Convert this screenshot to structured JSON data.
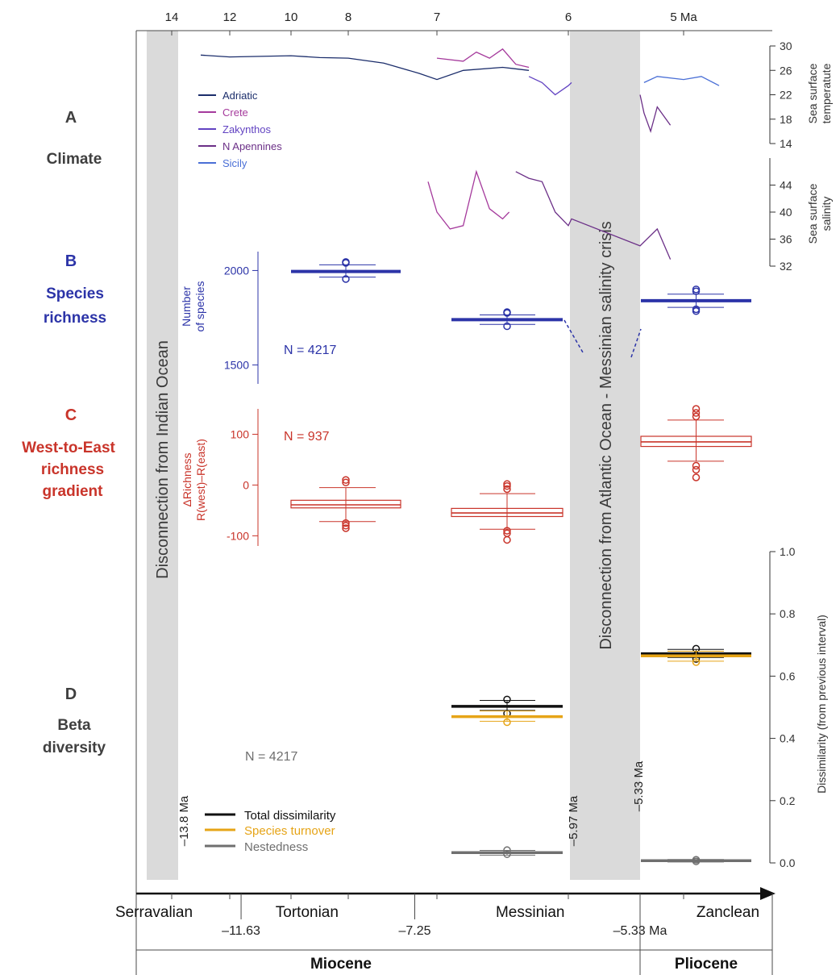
{
  "panels": {
    "a_letter": "A",
    "a_title": "Climate",
    "b_letter": "B",
    "b_title1": "Species",
    "b_title2": "richness",
    "c_letter": "C",
    "c_title1": "West-to-East",
    "c_title2": "richness",
    "c_title3": "gradient",
    "d_letter": "D",
    "d_title1": "Beta",
    "d_title2": "diversity"
  },
  "colors": {
    "dark_grey": "#3f3f3f",
    "navy": "#1b2d6b",
    "richness_blue": "#2c34a8",
    "gradient_red": "#c9342a",
    "crete": "#a53a9c",
    "zakynthos": "#6243c2",
    "n_apennines": "#6b2f87",
    "sicily": "#4a6fd6",
    "total": "#111111",
    "turnover": "#e6a417",
    "nestedness": "#6f6f6f",
    "band": "#dadada"
  },
  "bands": {
    "indian": "Disconnection from Indian Ocean",
    "atlantic": "Disconnection from Atlantic Ocean - Messinian salinity crisis",
    "m13_8": "–13.8 Ma",
    "m5_97": "–5.97 Ma",
    "m5_33": "–5.33 Ma"
  },
  "chart_data": [
    {
      "type": "line",
      "panel": "A",
      "title": "Climate",
      "xlabel": "Ma",
      "ylabel": "Sea surface temperatute",
      "ylim": [
        14,
        30
      ],
      "ticks": [
        14,
        18,
        22,
        26,
        30
      ],
      "series": [
        {
          "name": "Adriatic",
          "points": [
            [
              13,
              28.5
            ],
            [
              12,
              28.2
            ],
            [
              11,
              28.3
            ],
            [
              10,
              28.4
            ],
            [
              9,
              28.1
            ],
            [
              8,
              28.0
            ],
            [
              7.6,
              27.2
            ],
            [
              7.2,
              25.5
            ],
            [
              7.0,
              24.5
            ],
            [
              6.8,
              26.0
            ],
            [
              6.5,
              26.5
            ],
            [
              6.3,
              26.0
            ]
          ]
        },
        {
          "name": "Crete",
          "points": [
            [
              7.0,
              28.0
            ],
            [
              6.8,
              27.5
            ],
            [
              6.7,
              29.0
            ],
            [
              6.6,
              28.0
            ],
            [
              6.5,
              29.5
            ],
            [
              6.4,
              27.0
            ],
            [
              6.3,
              26.5
            ]
          ]
        },
        {
          "name": "Zakynthos",
          "points": [
            [
              6.3,
              25.0
            ],
            [
              6.2,
              24.0
            ],
            [
              6.1,
              22.0
            ],
            [
              6.0,
              23.5
            ],
            [
              5.97,
              24.0
            ]
          ]
        },
        {
          "name": "N Apennines",
          "points": [
            [
              5.33,
              22.0
            ],
            [
              5.3,
              19.0
            ],
            [
              5.25,
              16.0
            ],
            [
              5.2,
              20.0
            ],
            [
              5.1,
              17.0
            ]
          ]
        },
        {
          "name": "Sicily",
          "points": [
            [
              5.3,
              24.0
            ],
            [
              5.2,
              25.0
            ],
            [
              5.0,
              24.5
            ],
            [
              4.9,
              25.0
            ],
            [
              4.8,
              23.5
            ]
          ]
        }
      ]
    },
    {
      "type": "line",
      "panel": "A",
      "ylabel": "Sea surface salinity",
      "ylim": [
        32,
        48
      ],
      "ticks": [
        32,
        36,
        40,
        44
      ],
      "series": [
        {
          "name": "Crete",
          "points": [
            [
              7.1,
              44.5
            ],
            [
              7.0,
              40.0
            ],
            [
              6.9,
              37.5
            ],
            [
              6.8,
              38.0
            ],
            [
              6.7,
              46.0
            ],
            [
              6.6,
              40.5
            ],
            [
              6.5,
              39.0
            ],
            [
              6.45,
              40.0
            ]
          ]
        },
        {
          "name": "N Apennines",
          "points": [
            [
              6.4,
              46.0
            ],
            [
              6.3,
              45.0
            ],
            [
              6.2,
              44.5
            ],
            [
              6.1,
              40.0
            ],
            [
              6.0,
              38.0
            ],
            [
              5.97,
              39.0
            ],
            [
              5.33,
              35.0
            ],
            [
              5.2,
              37.5
            ],
            [
              5.1,
              33.0
            ]
          ]
        }
      ]
    },
    {
      "type": "boxplot",
      "panel": "B",
      "title": "Species richness",
      "ylabel": "Number of species",
      "ylim": [
        1400,
        2100
      ],
      "ticks": [
        1500,
        2000
      ],
      "annotation": "N = 4217",
      "boxes": [
        {
          "stage": "Tortonian",
          "median": 1995,
          "whisker_low": 1965,
          "whisker_high": 2030,
          "outliers": [
            1955,
            2040,
            2045
          ]
        },
        {
          "stage": "Messinian",
          "median": 1740,
          "whisker_low": 1715,
          "whisker_high": 1765,
          "outliers": [
            1705,
            1775,
            1780
          ]
        },
        {
          "stage": "Zanclean",
          "median": 1840,
          "whisker_low": 1805,
          "whisker_high": 1875,
          "outliers": [
            1785,
            1795,
            1890,
            1900
          ]
        }
      ]
    },
    {
      "type": "boxplot",
      "panel": "C",
      "title": "West-to-East richness gradient",
      "ylabel": "ΔRichness R(west)–R(east)",
      "ylim": [
        -120,
        150
      ],
      "ticks": [
        -100,
        0,
        100
      ],
      "annotation": "N = 937",
      "boxes": [
        {
          "stage": "Tortonian",
          "q1": -45,
          "median": -39,
          "q3": -30,
          "whisker_low": -72,
          "whisker_high": -5,
          "outliers": [
            -85,
            -80,
            -75,
            5,
            10
          ]
        },
        {
          "stage": "Messinian",
          "q1": -62,
          "median": -55,
          "q3": -46,
          "whisker_low": -87,
          "whisker_high": -17,
          "outliers": [
            -108,
            -95,
            -90,
            -8,
            -2,
            2
          ]
        },
        {
          "stage": "Zanclean",
          "q1": 76,
          "median": 85,
          "q3": 96,
          "whisker_low": 47,
          "whisker_high": 128,
          "outliers": [
            15,
            30,
            38,
            135,
            142,
            150
          ]
        }
      ]
    },
    {
      "type": "boxplot",
      "panel": "D",
      "title": "Beta diversity",
      "ylabel": "Dissimilarity (from previous interval)",
      "ylim": [
        0,
        1
      ],
      "ticks": [
        0.0,
        0.2,
        0.4,
        0.6,
        0.8,
        1.0
      ],
      "annotation": "N = 4217",
      "series": [
        {
          "name": "Total dissimilarity",
          "boxes": [
            {
              "stage": "Messinian",
              "median": 0.503,
              "whisker_low": 0.49,
              "whisker_high": 0.522,
              "outliers": [
                0.48,
                0.525
              ]
            },
            {
              "stage": "Zanclean",
              "median": 0.672,
              "whisker_low": 0.66,
              "whisker_high": 0.686,
              "outliers": [
                0.655,
                0.688
              ]
            }
          ]
        },
        {
          "name": "Species turnover",
          "boxes": [
            {
              "stage": "Messinian",
              "median": 0.47,
              "whisker_low": 0.455,
              "whisker_high": 0.488,
              "outliers": [
                0.452
              ]
            },
            {
              "stage": "Zanclean",
              "median": 0.665,
              "whisker_low": 0.648,
              "whisker_high": 0.68,
              "outliers": [
                0.645
              ]
            }
          ]
        },
        {
          "name": "Nestedness",
          "boxes": [
            {
              "stage": "Messinian",
              "median": 0.033,
              "whisker_low": 0.025,
              "whisker_high": 0.04,
              "outliers": [
                0.028,
                0.041
              ]
            },
            {
              "stage": "Zanclean",
              "median": 0.007,
              "whisker_low": 0.003,
              "whisker_high": 0.011,
              "outliers": [
                0.005,
                0.01
              ]
            }
          ]
        }
      ]
    }
  ],
  "time_axis": {
    "top_ticks": [
      {
        "ma": 14,
        "label": "14"
      },
      {
        "ma": 12,
        "label": "12"
      },
      {
        "ma": 10,
        "label": "10"
      },
      {
        "ma": 8,
        "label": "8"
      },
      {
        "ma": 7,
        "label": "7"
      },
      {
        "ma": 6,
        "label": "6"
      },
      {
        "ma": 5,
        "label": "5 Ma"
      }
    ],
    "stages": [
      {
        "name": "Serravalian",
        "mid": 14.25
      },
      {
        "name": "Tortonian",
        "mid": 9.44
      },
      {
        "name": "Messinian",
        "mid": 6.29
      },
      {
        "name": "Zanclean",
        "mid": 4.75
      }
    ],
    "boundaries": [
      {
        "ma": 11.63,
        "label": "–11.63"
      },
      {
        "ma": 7.25,
        "label": "–7.25"
      },
      {
        "ma": 5.33,
        "label": "–5.33 Ma"
      }
    ],
    "epochs": [
      {
        "name": "Miocene"
      },
      {
        "name": "Pliocene"
      }
    ]
  }
}
